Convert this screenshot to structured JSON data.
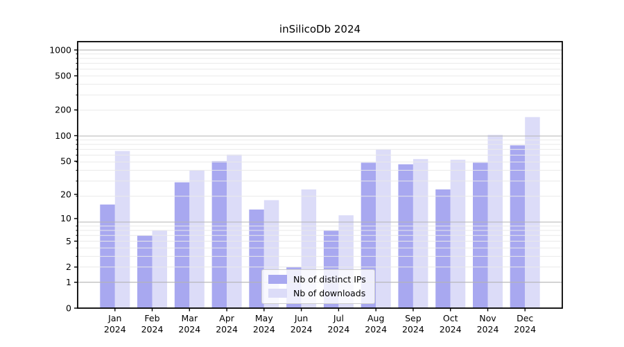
{
  "chart_data": {
    "type": "bar",
    "title": "inSilicoDb 2024",
    "categories": [
      "Jan",
      "Feb",
      "Mar",
      "Apr",
      "May",
      "Jun",
      "Jul",
      "Aug",
      "Sep",
      "Oct",
      "Nov",
      "Dec"
    ],
    "category_year": "2024",
    "series": [
      {
        "name": "Nb of distinct IPs",
        "color": "#a8a8f0",
        "values": [
          15,
          6,
          28,
          50,
          13,
          2,
          7,
          48,
          46,
          23,
          48,
          77
        ]
      },
      {
        "name": "Nb of downloads",
        "color": "#dcdcf8",
        "values": [
          66,
          7,
          39,
          60,
          17,
          23,
          11,
          69,
          53,
          52,
          102,
          165
        ]
      }
    ],
    "yscale": "log1p",
    "ylim": [
      0,
      1250
    ],
    "yticks": [
      0,
      1,
      2,
      5,
      10,
      20,
      50,
      100,
      200,
      500,
      1000
    ],
    "grid": {
      "major_values": [
        1,
        9,
        99,
        999
      ],
      "minor_values": [
        2,
        3,
        4,
        5,
        6,
        7,
        8,
        19,
        29,
        39,
        49,
        59,
        69,
        79,
        89,
        199,
        299,
        399,
        499,
        599,
        699,
        799,
        899
      ],
      "major_color": "#b3b3b3",
      "minor_color": "#e9e9e9",
      "grid_on_top": true
    },
    "legend": {
      "position": "lower center"
    },
    "xlabel": "",
    "ylabel": "",
    "axis_color": "#000000",
    "text_color": "#000000",
    "background": "#ffffff"
  }
}
